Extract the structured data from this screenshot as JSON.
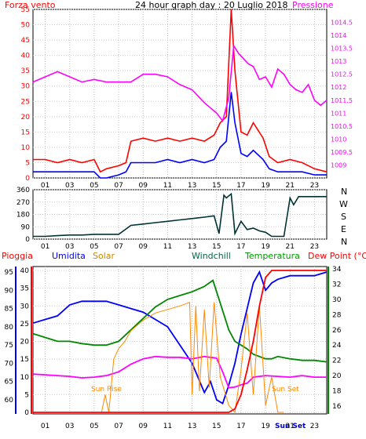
{
  "colors": {
    "wind_gust": "#ff0000",
    "wind_avg": "#0000ff",
    "pressure": "#ff00ff",
    "wind_dir": "#003333",
    "humidity": "#0000ff",
    "dewpoint": "#ff00ff",
    "temperature": "#008800",
    "solar": "#ff8800",
    "rain": "#ff0000",
    "humidity_label": "#0000ff",
    "solar_label": "#cc8800",
    "windchill_label": "#006644",
    "temperature_label": "#009900",
    "dewpoint_label": "#ff0000",
    "pioggia_label": "#ff0000",
    "title": "#000000",
    "axis_left_top": "#ff0000",
    "axis_right_top": "#ff00ff"
  },
  "header": {
    "left_label": "Forza vento",
    "title": "24 hour graph day : 20 Luglio 2018",
    "right_label": "Pressione"
  },
  "middle": {
    "right_labels": [
      "N",
      "W",
      "S",
      "E",
      "N"
    ]
  },
  "bottom_header": {
    "pioggia": "Pioggia",
    "umidita": "Umidita",
    "solar": "Solar",
    "windchill": "Windchill",
    "temperatura": "Temperatura",
    "dewpoint": "Dew Point (°C)"
  },
  "annotations": {
    "sun_rise": "Sun Rise",
    "sun_set": "Sun Set",
    "sun_set_axis": "Sun Set"
  },
  "chart_data": [
    {
      "type": "line",
      "title": "24 hour graph day : 20 Luglio 2018",
      "x_ticks": [
        "01",
        "03",
        "05",
        "07",
        "09",
        "11",
        "13",
        "15",
        "17",
        "19",
        "21",
        "23"
      ],
      "x_range_hours": [
        0,
        24
      ],
      "ylabel": "Forza vento",
      "y2label": "Pressione",
      "ylim": [
        0,
        55
      ],
      "y_ticks": [
        0,
        5,
        10,
        15,
        20,
        25,
        30,
        35,
        40,
        45,
        50,
        55
      ],
      "y2lim": [
        1008.5,
        1015
      ],
      "y2_ticks": [
        1009,
        1009.5,
        1010,
        1010.5,
        1011,
        1011.5,
        1012,
        1012.5,
        1013,
        1013.5,
        1014,
        1014.5
      ],
      "series": [
        {
          "name": "gust",
          "axis": "left",
          "x": [
            0,
            1,
            2,
            3,
            4,
            5,
            5.5,
            6,
            7,
            7.6,
            8,
            9,
            10,
            11,
            12,
            13,
            14,
            14.8,
            15.3,
            15.8,
            16.2,
            16.5,
            17,
            17.5,
            18,
            18.8,
            19.3,
            20,
            21,
            22,
            23,
            24
          ],
          "y": [
            6,
            6,
            5,
            6,
            5,
            6,
            2,
            3,
            4,
            5,
            12,
            13,
            12,
            13,
            12,
            13,
            12,
            14,
            18,
            20,
            55,
            35,
            15,
            14,
            18,
            13,
            7,
            5,
            6,
            5,
            3,
            2
          ]
        },
        {
          "name": "average",
          "axis": "left",
          "x": [
            0,
            1,
            2,
            3,
            4,
            5,
            5.5,
            6,
            7,
            7.6,
            8,
            9,
            10,
            11,
            12,
            13,
            14,
            14.8,
            15.3,
            15.8,
            16.2,
            16.5,
            17,
            17.5,
            18,
            18.8,
            19.3,
            20,
            21,
            22,
            23,
            24
          ],
          "y": [
            2,
            2,
            2,
            2,
            2,
            2,
            0,
            0,
            1,
            2,
            5,
            5,
            5,
            6,
            5,
            6,
            5,
            6,
            10,
            12,
            28,
            18,
            8,
            7,
            9,
            6,
            3,
            2,
            2,
            2,
            1,
            1
          ]
        },
        {
          "name": "pressure",
          "axis": "right",
          "x": [
            0,
            1,
            2,
            3,
            4,
            5,
            6,
            7,
            8,
            9,
            10,
            11,
            12,
            13,
            14,
            15,
            15.5,
            16,
            16.4,
            16.8,
            17.2,
            17.6,
            18,
            18.5,
            19,
            19.5,
            20,
            20.5,
            21,
            21.5,
            22,
            22.5,
            23,
            23.5,
            24
          ],
          "y": [
            1012.2,
            1012.4,
            1012.6,
            1012.4,
            1012.2,
            1012.3,
            1012.2,
            1012.2,
            1012.2,
            1012.5,
            1012.5,
            1012.4,
            1012.1,
            1011.9,
            1011.4,
            1011,
            1010.7,
            1011.6,
            1013.6,
            1013.3,
            1013.1,
            1012.9,
            1012.8,
            1012.3,
            1012.4,
            1012,
            1012.7,
            1012.5,
            1012.1,
            1011.9,
            1011.8,
            1012.1,
            1011.5,
            1011.3,
            1011.5
          ]
        }
      ]
    },
    {
      "type": "line",
      "x_ticks": [
        "01",
        "03",
        "05",
        "07",
        "09",
        "11",
        "13",
        "15",
        "17",
        "19",
        "21",
        "23"
      ],
      "x_range_hours": [
        0,
        24
      ],
      "ylim": [
        0,
        360
      ],
      "y_ticks": [
        0,
        90,
        180,
        270,
        360
      ],
      "series": [
        {
          "name": "wind direction",
          "x": [
            0,
            1,
            2,
            3,
            4,
            5,
            6,
            7,
            8,
            9,
            10,
            11,
            12,
            13,
            14,
            14.8,
            15.2,
            15.6,
            15.8,
            16.2,
            16.5,
            17,
            17.5,
            18,
            18.5,
            19,
            19.5,
            20.5,
            21,
            21.3,
            21.7,
            22,
            23,
            24
          ],
          "y": [
            20,
            20,
            25,
            30,
            30,
            35,
            35,
            35,
            100,
            110,
            120,
            130,
            140,
            150,
            160,
            170,
            40,
            320,
            300,
            330,
            40,
            130,
            70,
            80,
            60,
            50,
            20,
            20,
            300,
            250,
            310,
            310,
            310,
            310
          ]
        }
      ]
    },
    {
      "type": "line",
      "x_ticks": [
        "01",
        "03",
        "05",
        "07",
        "09",
        "11",
        "13",
        "15",
        "17",
        "19",
        "21",
        "23"
      ],
      "x_range_hours": [
        0,
        24
      ],
      "left_axes": [
        {
          "name": "Pioggia",
          "ticks": [
            0,
            5,
            10,
            15,
            20,
            25,
            30,
            35,
            40
          ]
        },
        {
          "name": "Umidita",
          "ticks": [
            60,
            65,
            70,
            75,
            80,
            85,
            90,
            95
          ]
        }
      ],
      "right_axis": {
        "name": "Dew Point (°C)",
        "ticks": [
          16,
          18,
          20,
          22,
          24,
          26,
          28,
          30,
          32,
          34
        ]
      },
      "series": [
        {
          "name": "Umidita",
          "x": [
            0,
            1,
            2,
            3,
            4,
            5,
            6,
            7,
            8,
            9,
            10,
            11,
            12,
            13,
            14,
            14.5,
            15,
            15.5,
            16,
            16.5,
            17,
            17.5,
            18,
            18.5,
            19,
            19.5,
            20,
            21,
            22,
            23,
            24
          ],
          "y": [
            81,
            82,
            83,
            86,
            87,
            87,
            87,
            86,
            85,
            84,
            82,
            80,
            75,
            70,
            62,
            65,
            60,
            59,
            64,
            70,
            78,
            85,
            92,
            95,
            90,
            92,
            93,
            94,
            94,
            94,
            95
          ]
        },
        {
          "name": "Dew Point",
          "x": [
            0,
            1,
            2,
            3,
            4,
            5,
            6,
            7,
            8,
            9,
            10,
            11,
            12,
            13,
            14,
            15,
            15.5,
            16,
            16.5,
            17,
            17.5,
            18,
            19,
            20,
            21,
            22,
            23,
            24
          ],
          "y": [
            20.2,
            20.1,
            20,
            19.9,
            19.7,
            19.8,
            20,
            20.5,
            21.5,
            22.2,
            22.5,
            22.4,
            22.4,
            22.2,
            22.5,
            22.3,
            20.5,
            18.4,
            18.5,
            18.8,
            19,
            19.8,
            20,
            19.9,
            19.8,
            20,
            19.8,
            19.8
          ]
        },
        {
          "name": "Temperatura",
          "x": [
            0,
            1,
            2,
            3,
            4,
            5,
            6,
            7,
            8,
            9,
            10,
            11,
            12,
            13,
            14,
            14.7,
            15.2,
            15.6,
            16,
            16.5,
            17,
            17.5,
            18,
            18.5,
            19,
            19.5,
            20,
            21,
            22,
            23,
            24
          ],
          "y": [
            25.5,
            25,
            24.5,
            24.5,
            24.2,
            24,
            24,
            24.5,
            26,
            27.5,
            29,
            30,
            30.5,
            31,
            31.7,
            32.5,
            30,
            28,
            26,
            24.5,
            24,
            23.5,
            22.8,
            22.5,
            22.2,
            22.2,
            22.5,
            22.2,
            22,
            22,
            21.8
          ]
        },
        {
          "name": "Solar",
          "x": [
            5.6,
            5.9,
            6.2,
            6.6,
            7,
            7.5,
            8,
            9,
            10,
            11,
            12,
            12.8,
            13,
            13.3,
            13.6,
            14,
            14.4,
            14.8,
            15.3,
            16,
            16.5,
            17,
            17.5,
            18,
            18.5,
            19,
            19.5,
            20,
            20.5
          ],
          "y": [
            0,
            5,
            0,
            15,
            18,
            20,
            23,
            26,
            28,
            29,
            30,
            31,
            5,
            30,
            6,
            29,
            7,
            31,
            10,
            2,
            0,
            12,
            28,
            5,
            30,
            2,
            10,
            0,
            0
          ]
        },
        {
          "name": "Pioggia",
          "x": [
            0,
            15.5,
            16,
            16.5,
            17,
            17.5,
            18,
            18.5,
            19,
            19.5,
            24
          ],
          "y": [
            0,
            0,
            0,
            1,
            5,
            12,
            20,
            30,
            38,
            40,
            40
          ]
        }
      ]
    }
  ]
}
